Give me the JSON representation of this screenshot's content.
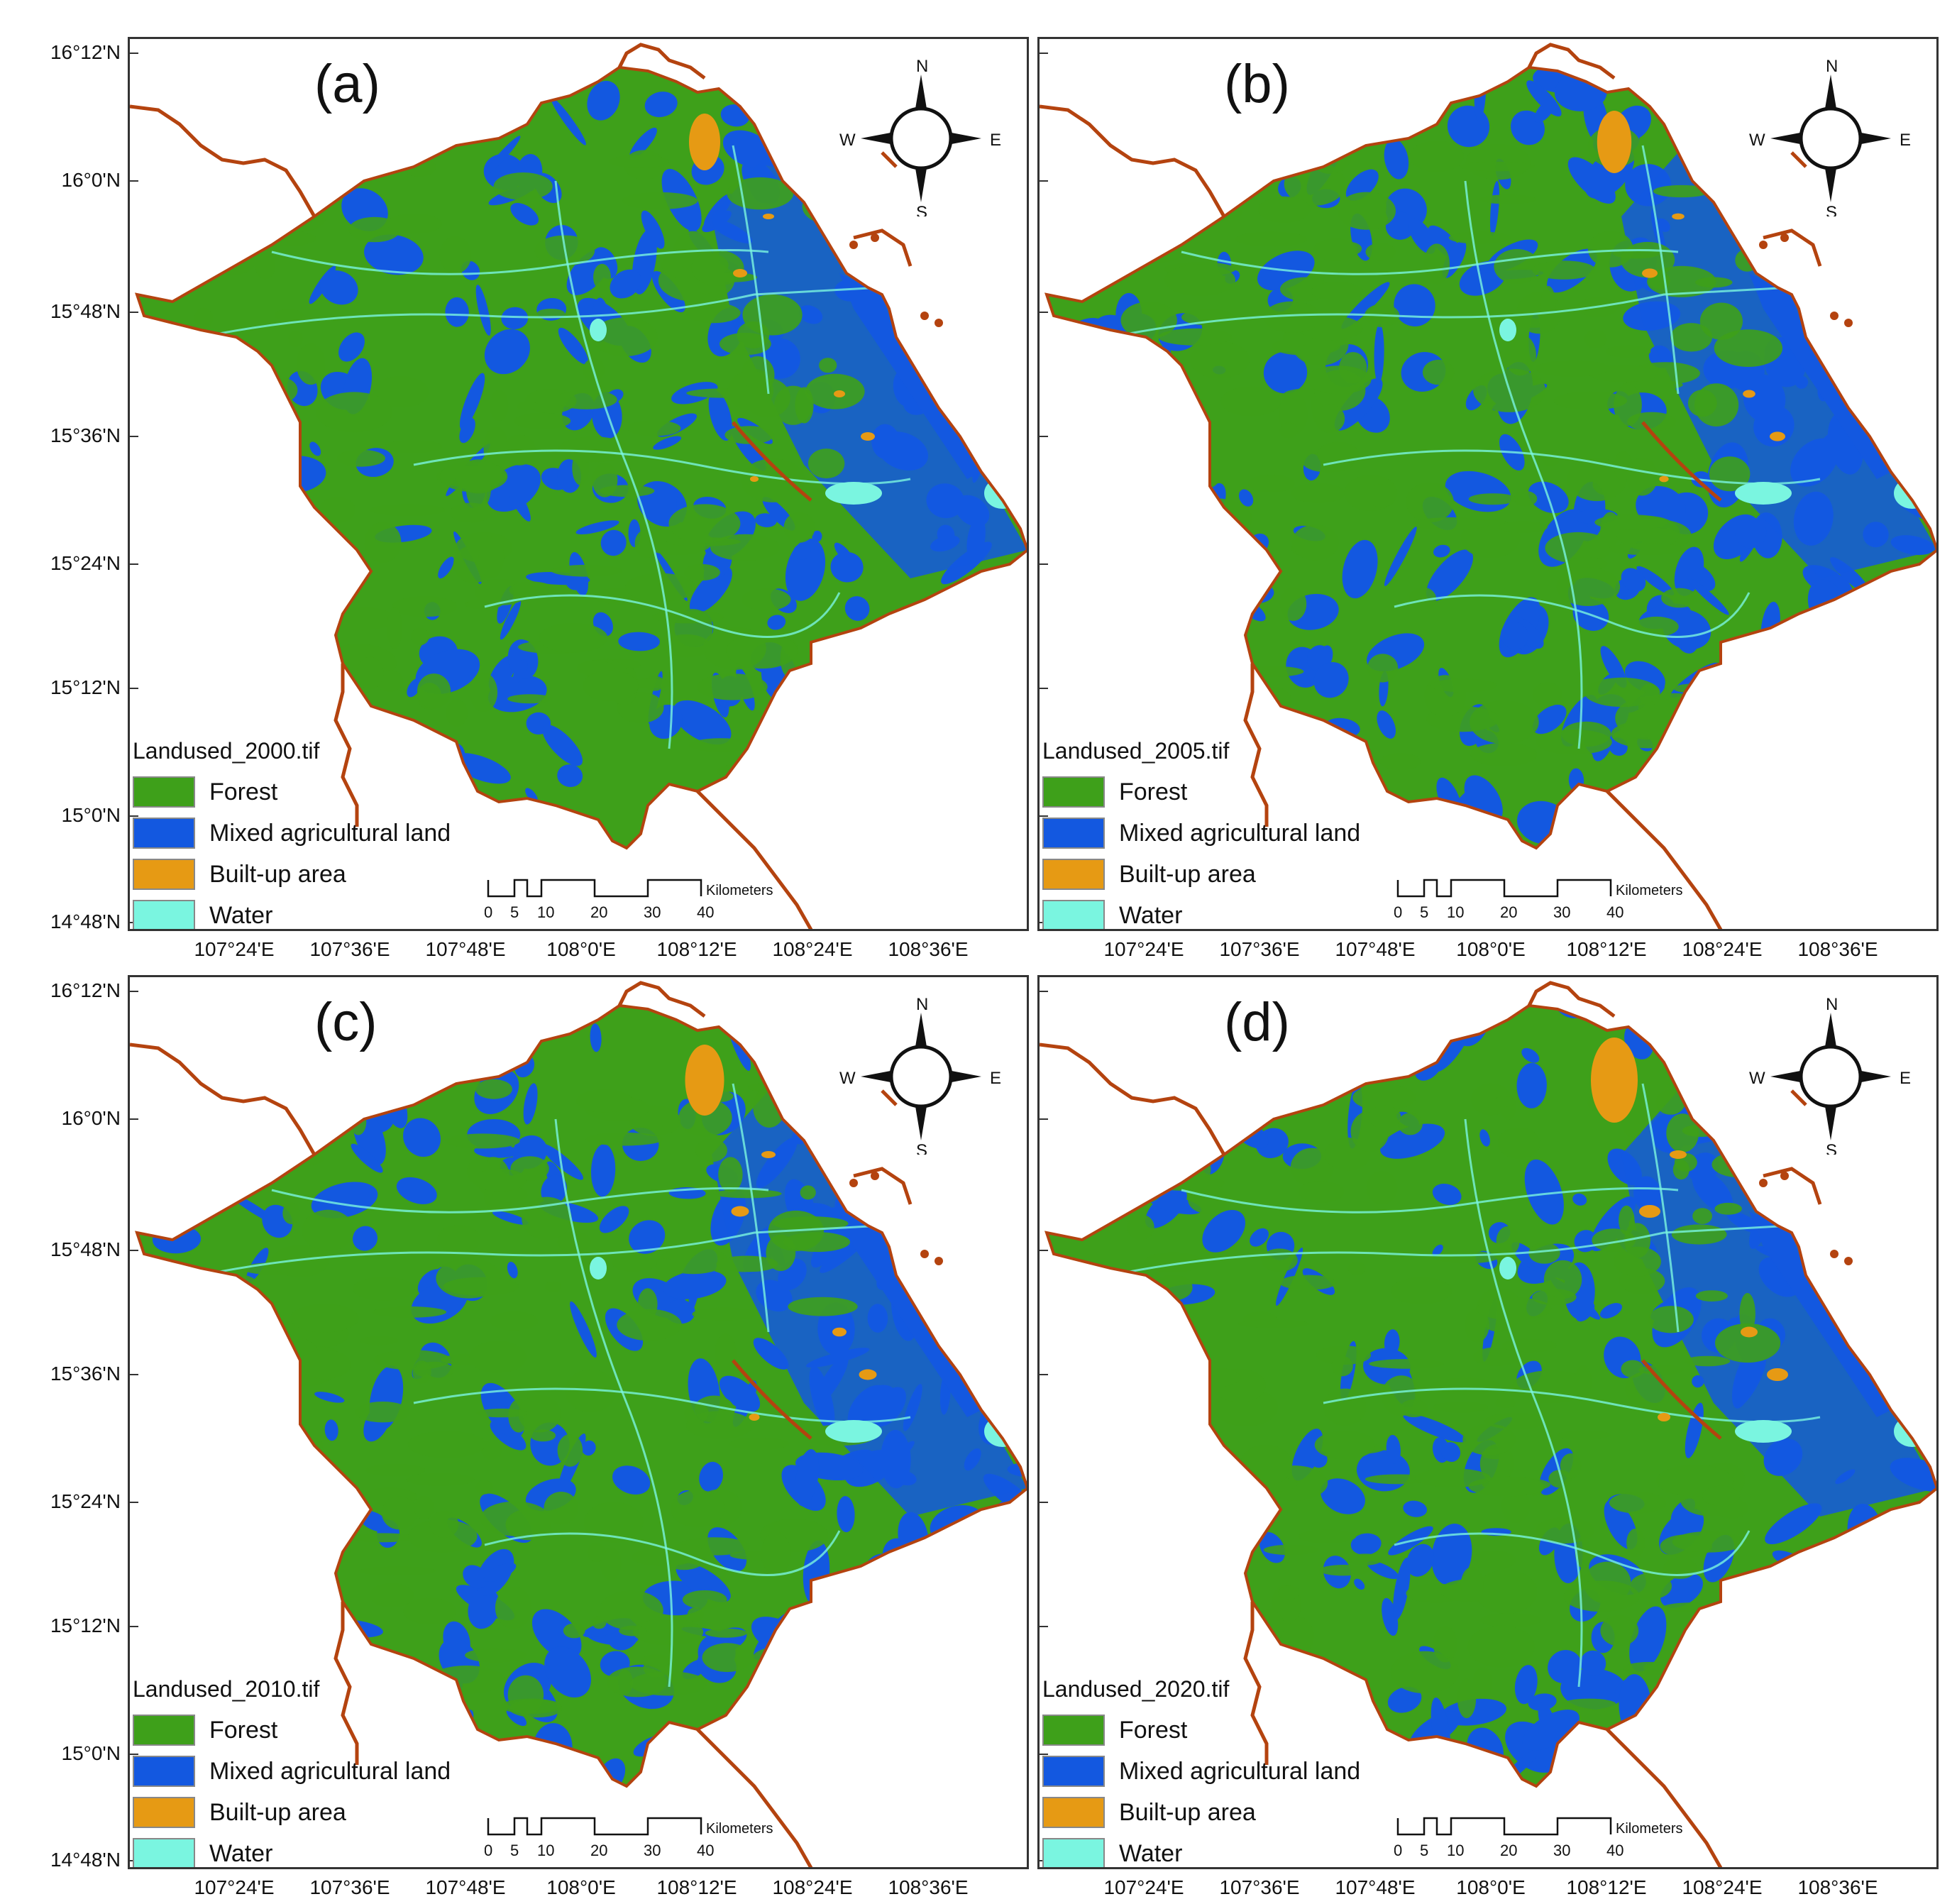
{
  "colors": {
    "forest": "#3ea01a",
    "agri": "#1358e0",
    "built": "#e69a14",
    "water": "#7af5e0",
    "boundary": "#b4430f"
  },
  "lat_ticks": [
    "16°12'N",
    "16°0'N",
    "15°48'N",
    "15°36'N",
    "15°24'N",
    "15°12'N",
    "15°0'N",
    "14°48'N"
  ],
  "lon_ticks": [
    "107°24'E",
    "107°36'E",
    "107°48'E",
    "108°0'E",
    "108°12'E",
    "108°24'E",
    "108°36'E"
  ],
  "compass": {
    "n": "N",
    "s": "S",
    "e": "E",
    "w": "W"
  },
  "scale": {
    "unit": "Kilometers",
    "ticks": [
      "0",
      "5",
      "10",
      "20",
      "30",
      "40"
    ]
  },
  "legend_labels": [
    "Forest",
    "Mixed agricultural land",
    "Built-up  area",
    "Water"
  ],
  "panels": [
    {
      "label": "(a)",
      "legend_title": "Landused_2000.tif"
    },
    {
      "label": "(b)",
      "legend_title": "Landused_2005.tif"
    },
    {
      "label": "(c)",
      "legend_title": "Landused_2010.tif"
    },
    {
      "label": "(d)",
      "legend_title": "Landused_2020.tif"
    }
  ]
}
